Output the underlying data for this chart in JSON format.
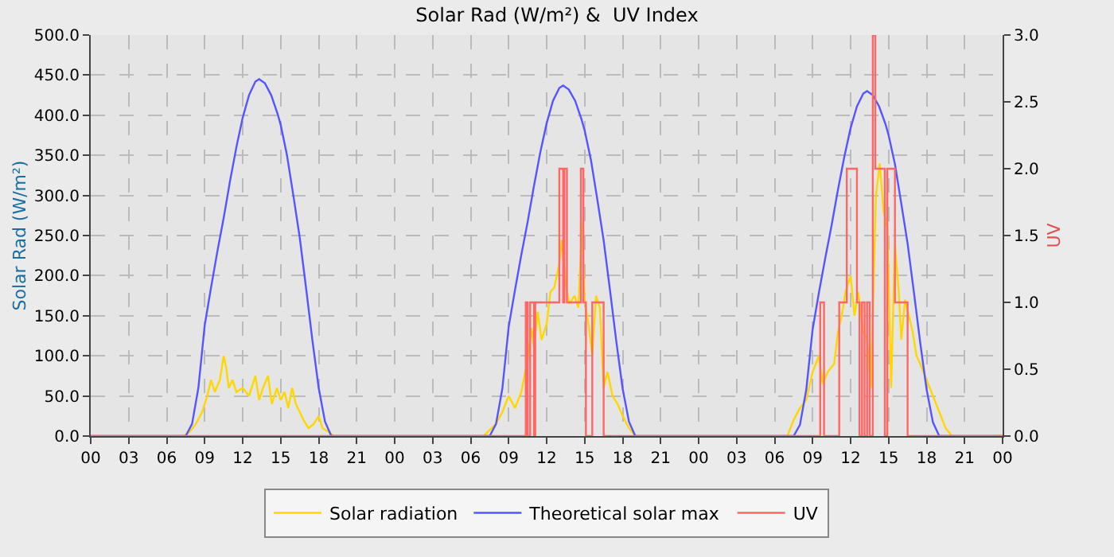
{
  "chart_data": {
    "type": "line",
    "title": "Solar Rad (W/m²) &  UV Index",
    "ylabel": "Solar Rad (W/m²)",
    "y2label": "UV",
    "xlim": [
      0,
      72
    ],
    "xticks": [
      {
        "value": 0,
        "label": "00"
      },
      {
        "value": 3,
        "label": "03"
      },
      {
        "value": 6,
        "label": "06"
      },
      {
        "value": 9,
        "label": "09"
      },
      {
        "value": 12,
        "label": "12"
      },
      {
        "value": 15,
        "label": "15"
      },
      {
        "value": 18,
        "label": "18"
      },
      {
        "value": 21,
        "label": "21"
      },
      {
        "value": 24,
        "label": "00"
      },
      {
        "value": 27,
        "label": "03"
      },
      {
        "value": 30,
        "label": "06"
      },
      {
        "value": 33,
        "label": "09"
      },
      {
        "value": 36,
        "label": "12"
      },
      {
        "value": 39,
        "label": "15"
      },
      {
        "value": 42,
        "label": "18"
      },
      {
        "value": 45,
        "label": "21"
      },
      {
        "value": 48,
        "label": "00"
      },
      {
        "value": 51,
        "label": "03"
      },
      {
        "value": 54,
        "label": "06"
      },
      {
        "value": 57,
        "label": "09"
      },
      {
        "value": 60,
        "label": "12"
      },
      {
        "value": 63,
        "label": "15"
      },
      {
        "value": 66,
        "label": "18"
      },
      {
        "value": 69,
        "label": "21"
      },
      {
        "value": 72,
        "label": "00"
      }
    ],
    "ylim": [
      0,
      500
    ],
    "yticks": [
      {
        "value": 0,
        "label": "0.0"
      },
      {
        "value": 50,
        "label": "50.0"
      },
      {
        "value": 100,
        "label": "100.0"
      },
      {
        "value": 150,
        "label": "150.0"
      },
      {
        "value": 200,
        "label": "200.0"
      },
      {
        "value": 250,
        "label": "250.0"
      },
      {
        "value": 300,
        "label": "300.0"
      },
      {
        "value": 350,
        "label": "350.0"
      },
      {
        "value": 400,
        "label": "400.0"
      },
      {
        "value": 450,
        "label": "450.0"
      },
      {
        "value": 500,
        "label": "500.0"
      }
    ],
    "y2lim": [
      0,
      3
    ],
    "y2ticks": [
      {
        "value": 0,
        "label": "0.0"
      },
      {
        "value": 0.5,
        "label": "0.5"
      },
      {
        "value": 1,
        "label": "1.0"
      },
      {
        "value": 1.5,
        "label": "1.5"
      },
      {
        "value": 2,
        "label": "2.0"
      },
      {
        "value": 2.5,
        "label": "2.5"
      },
      {
        "value": 3,
        "label": "3.0"
      }
    ],
    "grid": true,
    "legend": "bottom",
    "marker": "none",
    "line_style": "solid",
    "series": [
      {
        "name": "Solar radiation",
        "color": "#ffd700",
        "x": [
          0,
          7.3,
          7.8,
          8.3,
          8.8,
          9.2,
          9.5,
          9.8,
          10.2,
          10.5,
          10.7,
          10.9,
          11.2,
          11.5,
          12,
          12.5,
          13,
          13.3,
          13.6,
          14,
          14.3,
          14.7,
          15,
          15.3,
          15.6,
          15.9,
          16.2,
          16.5,
          16.8,
          17.2,
          17.6,
          18,
          18.3,
          18.8,
          19.2,
          31,
          32,
          32.5,
          33,
          33.5,
          34,
          34.5,
          34.8,
          35,
          35.3,
          35.6,
          36,
          36.3,
          36.6,
          37,
          37.2,
          37.5,
          37.8,
          38.2,
          38.5,
          38.8,
          39,
          39.3,
          39.6,
          39.9,
          40.2,
          40.5,
          40.8,
          41.2,
          41.6,
          42,
          42.5,
          43,
          55,
          55.5,
          56,
          56.5,
          57,
          57.5,
          57.8,
          58.2,
          58.7,
          59,
          59.3,
          59.6,
          60,
          60.3,
          60.6,
          61,
          61.3,
          61.6,
          62,
          62.3,
          62.6,
          62.9,
          63.2,
          63.5,
          63.8,
          64,
          64.3,
          64.6,
          64.9,
          65.2,
          65.5,
          66,
          66.5,
          67,
          67.5,
          68,
          72
        ],
        "values": [
          0,
          0,
          5,
          15,
          30,
          50,
          70,
          55,
          70,
          100,
          85,
          60,
          70,
          55,
          60,
          50,
          75,
          45,
          60,
          75,
          40,
          60,
          45,
          55,
          35,
          60,
          40,
          30,
          20,
          10,
          15,
          25,
          10,
          5,
          0,
          0,
          15,
          30,
          50,
          35,
          55,
          95,
          135,
          110,
          155,
          120,
          140,
          180,
          185,
          215,
          245,
          190,
          165,
          175,
          160,
          265,
          170,
          140,
          100,
          175,
          160,
          60,
          80,
          50,
          40,
          25,
          10,
          0,
          0,
          20,
          35,
          45,
          80,
          100,
          65,
          80,
          90,
          130,
          150,
          180,
          200,
          150,
          180,
          130,
          120,
          60,
          300,
          340,
          280,
          260,
          60,
          240,
          180,
          120,
          170,
          150,
          130,
          100,
          90,
          70,
          50,
          30,
          10,
          0,
          0
        ]
      },
      {
        "name": "Theoretical solar max",
        "color": "#5555ff",
        "x": [
          0,
          7.5,
          8,
          8.5,
          9,
          9.5,
          10,
          10.5,
          11,
          11.5,
          12,
          12.5,
          13,
          13.3,
          13.75,
          14.25,
          14.75,
          15,
          15.5,
          16,
          16.5,
          17,
          17.5,
          18,
          18.5,
          19,
          31.5,
          32,
          32.5,
          33,
          33.5,
          34,
          34.5,
          35,
          35.5,
          36,
          36.5,
          37,
          37.3,
          37.75,
          38.25,
          38.75,
          39,
          39.5,
          40,
          40.5,
          41,
          41.5,
          42,
          42.5,
          43,
          55.5,
          56,
          56.5,
          57,
          57.5,
          58,
          58.5,
          59,
          59.5,
          60,
          60.5,
          61,
          61.3,
          61.75,
          62.25,
          62.75,
          63,
          63.5,
          64,
          64.5,
          65,
          65.5,
          66,
          66.5,
          67,
          72
        ],
        "values": [
          0,
          0,
          15,
          60,
          138,
          185,
          230,
          272,
          318,
          360,
          397,
          425,
          442,
          445,
          440,
          425,
          402,
          388,
          350,
          300,
          248,
          185,
          120,
          60,
          18,
          0,
          0,
          15,
          59,
          136,
          182,
          226,
          267,
          312,
          354,
          390,
          418,
          434,
          437,
          432,
          418,
          395,
          381,
          344,
          295,
          244,
          182,
          118,
          59,
          18,
          0,
          0,
          14,
          58,
          133,
          179,
          222,
          263,
          307,
          348,
          384,
          411,
          427,
          430,
          425,
          411,
          389,
          375,
          339,
          290,
          240,
          179,
          116,
          58,
          17,
          0,
          0
        ]
      },
      {
        "name": "UV",
        "color": "#ff6666",
        "type": "step",
        "axis": "y2",
        "x": [
          0,
          34.35,
          34.5,
          34.7,
          35.0,
          35.1,
          37.0,
          37.3,
          37.4,
          37.6,
          38.7,
          38.9,
          39.1,
          39.3,
          39.6,
          40.5,
          57.6,
          57.9,
          59.1,
          59.7,
          60.5,
          60.7,
          60.9,
          61.1,
          61.3,
          61.5,
          61.75,
          61.95,
          62.7,
          62.9,
          63.5,
          64.5,
          72
        ],
        "values": [
          0,
          1,
          0,
          1,
          0,
          1,
          2,
          1,
          2,
          1,
          2,
          1,
          0,
          0,
          1,
          0,
          1,
          0,
          1,
          2,
          1,
          0,
          1,
          0,
          1,
          0,
          3,
          2,
          0,
          2,
          1,
          0,
          0
        ]
      }
    ]
  }
}
